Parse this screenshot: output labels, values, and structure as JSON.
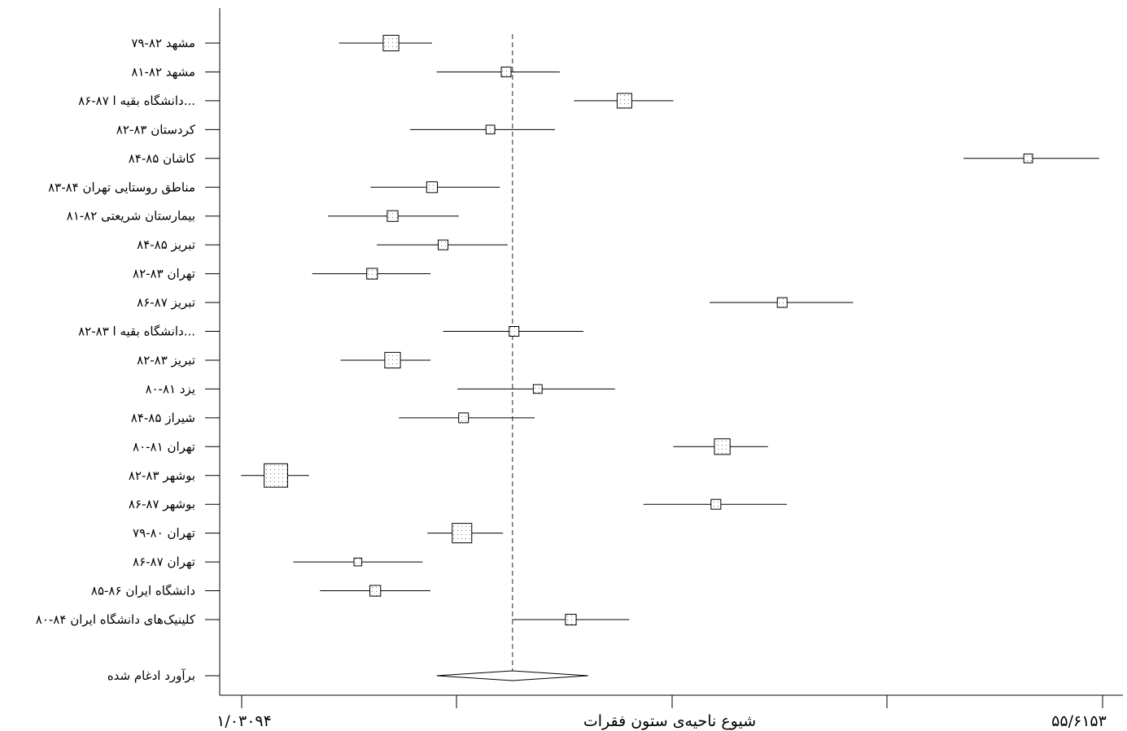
{
  "chart_data": {
    "type": "forest",
    "x_axis": {
      "label": "شیوع ناحیه‌ی ستون فقرات",
      "min_label": "۱/۰۳۰۹۴",
      "max_label": "۵۵/۶۱۵۳",
      "min": 1.03094,
      "max": 55.6153,
      "scale": "linear"
    },
    "reference_line": 18.2,
    "studies": [
      {
        "label": "۷۹-۸۲ مشهد",
        "estimate": 10.5,
        "lower": 7.2,
        "upper": 13.1,
        "weight": 1.6
      },
      {
        "label": "۸۱-۸۲ مشهد",
        "estimate": 17.8,
        "lower": 13.4,
        "upper": 21.2,
        "weight": 1.0
      },
      {
        "label": "۸۶-۸۷ دانشگاه بقیه ا...",
        "estimate": 25.3,
        "lower": 22.1,
        "upper": 28.4,
        "weight": 1.5
      },
      {
        "label": "۸۲-۸۳ کردستان",
        "estimate": 16.8,
        "lower": 11.7,
        "upper": 20.9,
        "weight": 0.9
      },
      {
        "label": "۸۴-۸۵ کاشان",
        "estimate": 50.9,
        "lower": 46.8,
        "upper": 55.4,
        "weight": 0.9
      },
      {
        "label": "۸۳-۸۴ مناطق روستایی تهران",
        "estimate": 13.1,
        "lower": 9.2,
        "upper": 17.4,
        "weight": 1.1
      },
      {
        "label": "۸۱-۸۲ بیمارستان شریعتی",
        "estimate": 10.6,
        "lower": 6.5,
        "upper": 14.8,
        "weight": 1.1
      },
      {
        "label": "۸۴-۸۵ تبریز",
        "estimate": 13.8,
        "lower": 9.6,
        "upper": 17.9,
        "weight": 1.0
      },
      {
        "label": "۸۲-۸۳ تهران",
        "estimate": 9.3,
        "lower": 5.5,
        "upper": 13.0,
        "weight": 1.1
      },
      {
        "label": "۸۶-۸۷ تبریز",
        "estimate": 35.3,
        "lower": 30.7,
        "upper": 39.8,
        "weight": 1.0
      },
      {
        "label": "۸۲-۸۳ دانشگاه بقیه ا...",
        "estimate": 18.3,
        "lower": 13.8,
        "upper": 22.7,
        "weight": 1.0
      },
      {
        "label": "۸۲-۸۳ تبریز",
        "estimate": 10.6,
        "lower": 7.3,
        "upper": 13.0,
        "weight": 1.6
      },
      {
        "label": "۸۰-۸۱ یزد",
        "estimate": 19.8,
        "lower": 14.7,
        "upper": 24.7,
        "weight": 0.9
      },
      {
        "label": "۸۴-۸۵ شیراز",
        "estimate": 15.1,
        "lower": 11.0,
        "upper": 19.6,
        "weight": 1.0
      },
      {
        "label": "۸۰-۸۱ تهران",
        "estimate": 31.5,
        "lower": 28.4,
        "upper": 34.4,
        "weight": 1.6
      },
      {
        "label": "۸۲-۸۳ بوشهر",
        "estimate": 3.2,
        "lower": 1.0,
        "upper": 5.3,
        "weight": 2.4
      },
      {
        "label": "۸۶-۸۷ بوشهر",
        "estimate": 31.1,
        "lower": 26.5,
        "upper": 35.6,
        "weight": 1.0
      },
      {
        "label": "۷۹-۸۰ تهران",
        "estimate": 15.0,
        "lower": 12.8,
        "upper": 17.6,
        "weight": 2.0
      },
      {
        "label": "۸۶-۸۷ تهران",
        "estimate": 8.4,
        "lower": 4.3,
        "upper": 12.5,
        "weight": 0.8
      },
      {
        "label": "۸۵-۸۶ دانشگاه ایران",
        "estimate": 9.5,
        "lower": 6.0,
        "upper": 13.0,
        "weight": 1.1
      },
      {
        "label": "۸۰-۸۴ کلینیک‌های دانشگاه ایران",
        "estimate": 21.9,
        "lower": 18.2,
        "upper": 25.6,
        "weight": 1.1
      }
    ],
    "pooled": {
      "label": "برآورد ادغام شده",
      "estimate": 18.2,
      "lower": 13.4,
      "upper": 23.0
    }
  }
}
